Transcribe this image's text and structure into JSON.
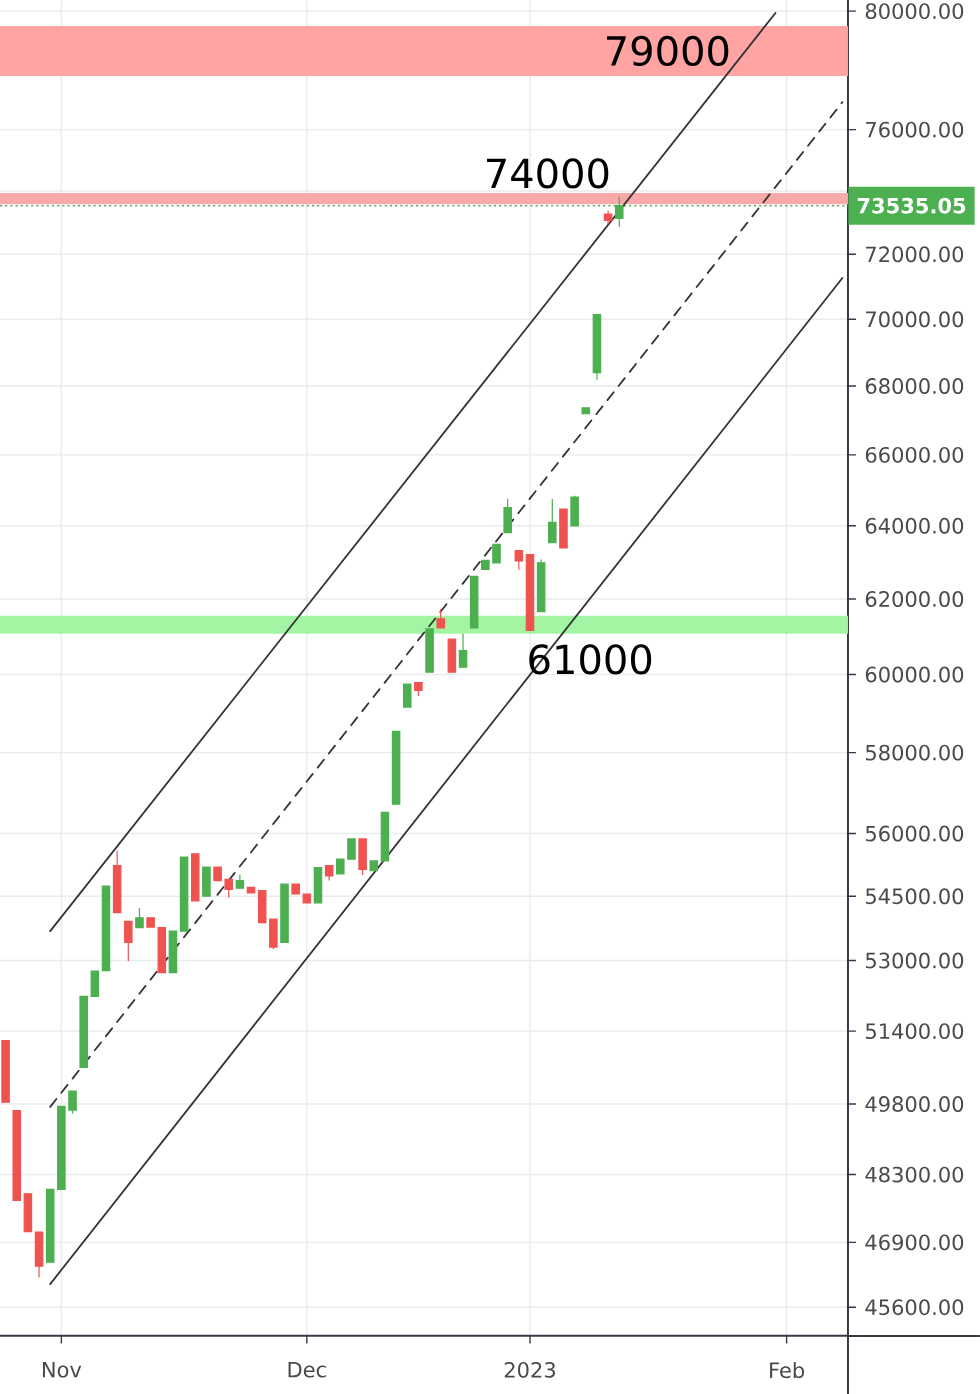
{
  "chart_data": {
    "type": "candlestick",
    "categories": [
      null,
      null,
      null,
      null,
      null,
      "Nov",
      null,
      null,
      null,
      null,
      null,
      null,
      null,
      null,
      null,
      null,
      null,
      null,
      null,
      null,
      null,
      null,
      null,
      null,
      null,
      null,
      null,
      "Dec",
      null,
      null,
      null,
      null,
      null,
      null,
      null,
      null,
      null,
      null,
      null,
      null,
      null,
      null,
      null,
      null,
      null,
      null,
      null,
      "2023",
      null,
      null,
      null,
      null,
      null,
      null,
      null,
      null,
      null,
      null,
      null,
      null,
      null,
      null,
      null,
      null,
      null,
      null,
      null,
      null,
      null,
      null,
      "Feb",
      null,
      null,
      null,
      null,
      null
    ],
    "ohlc": [
      [
        51190,
        51190,
        49840,
        49840
      ],
      [
        49660,
        49660,
        47760,
        47760
      ],
      [
        47900,
        47900,
        47120,
        47120
      ],
      [
        47110,
        47110,
        46190,
        46420
      ],
      [
        46500,
        47990,
        46500,
        47990
      ],
      [
        47990,
        49750,
        47990,
        49750
      ],
      [
        49670,
        50080,
        49590,
        50080
      ],
      [
        50600,
        52180,
        50600,
        52180
      ],
      [
        52180,
        52760,
        52180,
        52760
      ],
      [
        52770,
        54740,
        52770,
        54740
      ],
      [
        55230,
        55590,
        54110,
        54110
      ],
      [
        53910,
        53910,
        52990,
        53420
      ],
      [
        53760,
        54220,
        53760,
        53990
      ],
      [
        53990,
        53990,
        53770,
        53770
      ],
      [
        53760,
        53760,
        52720,
        52720
      ],
      [
        52720,
        53680,
        52720,
        53680
      ],
      [
        53680,
        55430,
        53680,
        55430
      ],
      [
        55510,
        55510,
        54390,
        54390
      ],
      [
        54500,
        55190,
        54500,
        55190
      ],
      [
        55190,
        55190,
        54870,
        54870
      ],
      [
        54900,
        54900,
        54470,
        54660
      ],
      [
        54690,
        55010,
        54690,
        54870
      ],
      [
        54710,
        54710,
        54580,
        54580
      ],
      [
        54630,
        54630,
        53880,
        53880
      ],
      [
        53960,
        53960,
        53260,
        53310
      ],
      [
        53420,
        54790,
        53420,
        54790
      ],
      [
        54790,
        54790,
        54550,
        54550
      ],
      [
        54550,
        54550,
        54340,
        54340
      ],
      [
        54340,
        55180,
        54340,
        55180
      ],
      [
        55230,
        55230,
        54870,
        54980
      ],
      [
        55030,
        55380,
        55030,
        55380
      ],
      [
        55380,
        55870,
        55380,
        55870
      ],
      [
        55870,
        55870,
        55000,
        55140
      ],
      [
        55110,
        55340,
        55110,
        55340
      ],
      [
        55340,
        56520,
        55340,
        56520
      ],
      [
        56720,
        58540,
        56720,
        58540
      ],
      [
        59160,
        59750,
        59160,
        59750
      ],
      [
        59790,
        59790,
        59440,
        59590
      ],
      [
        60060,
        61200,
        60060,
        61200
      ],
      [
        61470,
        61730,
        61230,
        61230
      ],
      [
        60930,
        60930,
        60060,
        60060
      ],
      [
        60190,
        61070,
        60190,
        60630
      ],
      [
        61230,
        62610,
        61230,
        62610
      ],
      [
        62800,
        63050,
        62800,
        63050
      ],
      [
        62980,
        63490,
        62980,
        63490
      ],
      [
        63810,
        64750,
        63810,
        64510
      ],
      [
        63310,
        63310,
        62790,
        63030
      ],
      [
        63200,
        63200,
        61160,
        61160
      ],
      [
        61660,
        63070,
        61660,
        62980
      ],
      [
        63530,
        64750,
        63530,
        64090
      ],
      [
        64470,
        64470,
        63390,
        63390
      ],
      [
        64000,
        64840,
        64000,
        64800
      ],
      [
        67190,
        67360,
        67190,
        67360
      ],
      [
        68390,
        70140,
        68190,
        70140
      ],
      [
        73270,
        73380,
        72940,
        73070
      ],
      [
        73130,
        73830,
        72860,
        73535.05
      ],
      null,
      null,
      null,
      null,
      null,
      null,
      null,
      null,
      null,
      null,
      null,
      null,
      null,
      null,
      null,
      null,
      null,
      null,
      null,
      null
    ],
    "colors": [
      "#ef5350",
      "#ef5350",
      "#ef5350",
      "#ef5350",
      "#4caf50",
      "#4caf50",
      "#4caf50",
      "#4caf50",
      "#4caf50",
      "#4caf50",
      "#ef5350",
      "#ef5350",
      "#4caf50",
      "#ef5350",
      "#ef5350",
      "#4caf50",
      "#4caf50",
      "#ef5350",
      "#4caf50",
      "#ef5350",
      "#ef5350",
      "#4caf50",
      "#ef5350",
      "#ef5350",
      "#ef5350",
      "#4caf50",
      "#ef5350",
      "#ef5350",
      "#4caf50",
      "#ef5350",
      "#4caf50",
      "#4caf50",
      "#ef5350",
      "#4caf50",
      "#4caf50",
      "#4caf50",
      "#4caf50",
      "#ef5350",
      "#4caf50",
      "#ef5350",
      "#ef5350",
      "#4caf50",
      "#4caf50",
      "#4caf50",
      "#4caf50",
      "#4caf50",
      "#ef5350",
      "#ef5350",
      "#4caf50",
      "#4caf50",
      "#ef5350",
      "#4caf50",
      "#4caf50",
      "#4caf50",
      "#ef5350",
      "#4caf50",
      null,
      null,
      null,
      null,
      null,
      null,
      null,
      null,
      null,
      null,
      null,
      null,
      null,
      null,
      null,
      null,
      null,
      null,
      null,
      null
    ],
    "series": [
      {
        "type": "line",
        "color": "#333333",
        "line_style": "solid",
        "values": [
          null,
          null,
          null,
          null,
          53680,
          null,
          null,
          null,
          null,
          null,
          null,
          null,
          null,
          null,
          null,
          null,
          null,
          null,
          null,
          null,
          null,
          null,
          null,
          null,
          null,
          null,
          null,
          null,
          null,
          null,
          null,
          null,
          null,
          null,
          null,
          null,
          null,
          null,
          null,
          null,
          null,
          null,
          null,
          null,
          null,
          null,
          null,
          null,
          null,
          null,
          null,
          null,
          null,
          null,
          null,
          null,
          null,
          null,
          null,
          null,
          null,
          null,
          null,
          null,
          null,
          null,
          null,
          null,
          null,
          79950,
          null,
          null,
          null,
          null,
          null,
          null
        ]
      },
      {
        "type": "line",
        "color": "#333333",
        "line_style": "dashed",
        "values": [
          null,
          null,
          null,
          null,
          49740,
          null,
          null,
          null,
          null,
          null,
          null,
          null,
          null,
          null,
          null,
          null,
          null,
          null,
          null,
          null,
          null,
          null,
          null,
          null,
          null,
          null,
          null,
          null,
          null,
          null,
          null,
          null,
          null,
          null,
          null,
          null,
          null,
          null,
          null,
          null,
          null,
          null,
          null,
          null,
          null,
          null,
          null,
          null,
          null,
          null,
          null,
          null,
          null,
          null,
          null,
          null,
          null,
          null,
          null,
          null,
          null,
          null,
          null,
          null,
          null,
          null,
          null,
          null,
          null,
          null,
          null,
          null,
          null,
          null,
          null,
          76910
        ]
      },
      {
        "type": "line",
        "color": "#333333",
        "line_style": "solid",
        "values": [
          null,
          null,
          null,
          null,
          46060,
          null,
          null,
          null,
          null,
          null,
          null,
          null,
          null,
          null,
          null,
          null,
          null,
          null,
          null,
          null,
          null,
          null,
          null,
          null,
          null,
          null,
          null,
          null,
          null,
          null,
          null,
          null,
          null,
          null,
          null,
          null,
          null,
          null,
          null,
          null,
          null,
          null,
          null,
          null,
          null,
          null,
          null,
          null,
          null,
          null,
          null,
          null,
          null,
          null,
          null,
          null,
          null,
          null,
          null,
          null,
          null,
          null,
          null,
          null,
          null,
          null,
          null,
          null,
          null,
          null,
          null,
          null,
          null,
          null,
          null,
          71260
        ]
      }
    ],
    "ylim": [
      45040,
      80400
    ],
    "yticks": [
      {
        "value": 45600,
        "label": "45600.00"
      },
      {
        "value": 46900,
        "label": "46900.00"
      },
      {
        "value": 48300,
        "label": "48300.00"
      },
      {
        "value": 49800,
        "label": "49800.00"
      },
      {
        "value": 51400,
        "label": "51400.00"
      },
      {
        "value": 53000,
        "label": "53000.00"
      },
      {
        "value": 54500,
        "label": "54500.00"
      },
      {
        "value": 56000,
        "label": "56000.00"
      },
      {
        "value": 58000,
        "label": "58000.00"
      },
      {
        "value": 60000,
        "label": "60000.00"
      },
      {
        "value": 62000,
        "label": "62000.00"
      },
      {
        "value": 64000,
        "label": "64000.00"
      },
      {
        "value": 66000,
        "label": "66000.00"
      },
      {
        "value": 68000,
        "label": "68000.00"
      },
      {
        "value": 70000,
        "label": "70000.00"
      },
      {
        "value": 72000,
        "label": "72000.00"
      },
      {
        "value": 74000,
        "label": null
      },
      {
        "value": 76000,
        "label": "76000.00"
      },
      {
        "value": 80000,
        "label": "80000.00"
      }
    ],
    "log": "y",
    "grid": true,
    "bands": [
      {
        "axis": "y",
        "from": 77800,
        "to": 79500,
        "color": "#ffa3a3",
        "label": "79000"
      },
      {
        "axis": "y",
        "from": 73580,
        "to": 73940,
        "color": "#f9a9a9",
        "label": "74000"
      },
      {
        "axis": "y",
        "from": 61070,
        "to": 61550,
        "color": "#a3f5a3",
        "label": "61000"
      }
    ],
    "ref_lines": [
      {
        "axis": "y",
        "value": 73535.05,
        "label": "73535.05",
        "color": "#4caf50",
        "line_style": "dotted"
      }
    ]
  }
}
